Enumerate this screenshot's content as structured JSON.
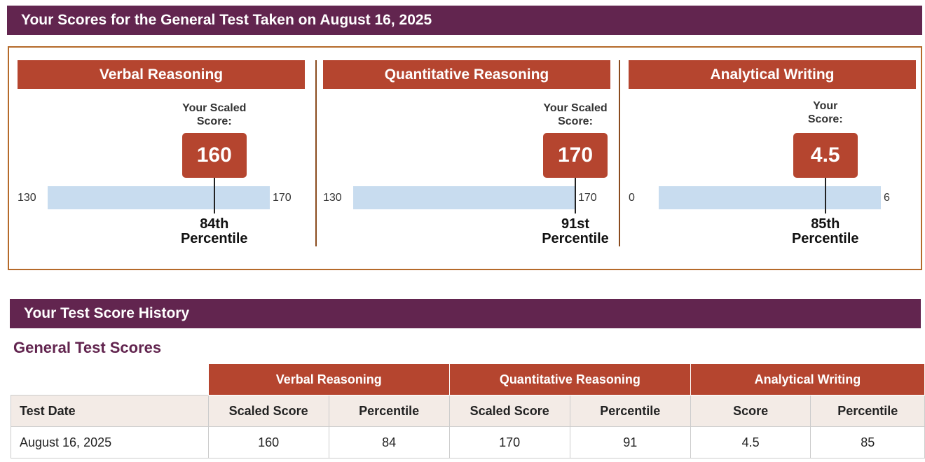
{
  "header": {
    "title": "Your Scores for the General Test Taken on August 16, 2025"
  },
  "sections": [
    {
      "title": "Verbal Reasoning",
      "score_label": "Your Scaled Score:",
      "score": 160,
      "scale_min": 130,
      "scale_max": 170,
      "percentile": "84th",
      "percentile_label": "Percentile"
    },
    {
      "title": "Quantitative Reasoning",
      "score_label": "Your Scaled Score:",
      "score": 170,
      "scale_min": 130,
      "scale_max": 170,
      "percentile": "91st",
      "percentile_label": "Percentile"
    },
    {
      "title": "Analytical Writing",
      "score_label": "Your Score:",
      "score": 4.5,
      "scale_min": 0,
      "scale_max": 6,
      "percentile": "85th",
      "percentile_label": "Percentile"
    }
  ],
  "history": {
    "title": "Your Test Score History",
    "subtitle": "General Test Scores",
    "table": {
      "groups": [
        "Verbal Reasoning",
        "Quantitative Reasoning",
        "Analytical Writing"
      ],
      "columns": [
        "Test Date",
        "Scaled Score",
        "Percentile",
        "Scaled Score",
        "Percentile",
        "Score",
        "Percentile"
      ],
      "rows": [
        [
          "August 16, 2025",
          160,
          84,
          170,
          91,
          4.5,
          85
        ]
      ]
    }
  }
}
